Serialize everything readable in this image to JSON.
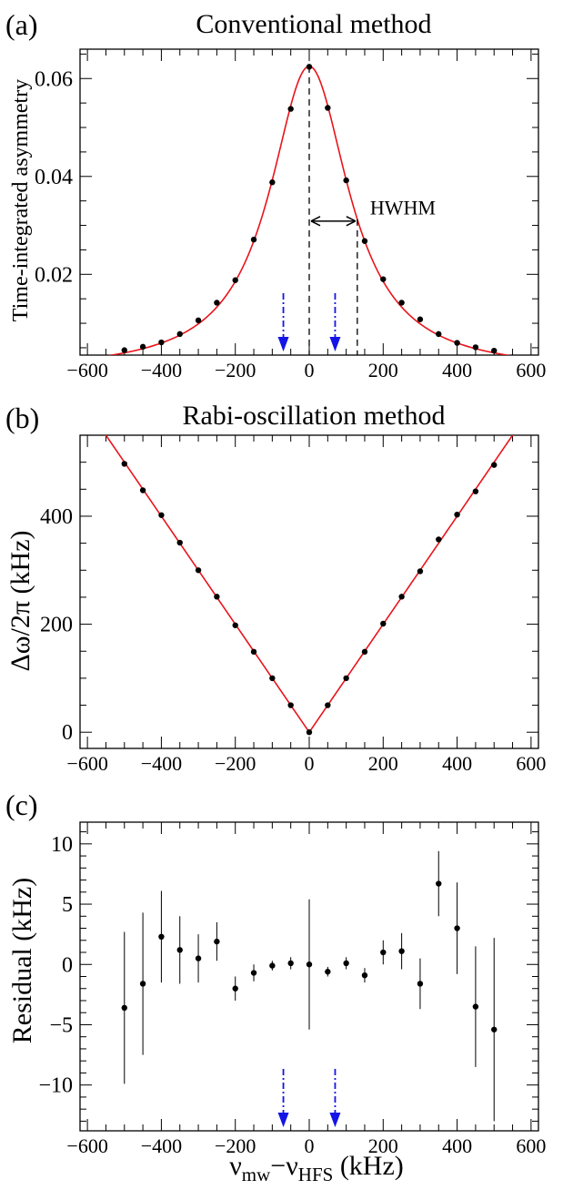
{
  "figure": {
    "panel_labels": [
      "(a)",
      "(b)",
      "(c)"
    ],
    "titles": [
      "Conventional method",
      "Rabi-oscillation method"
    ],
    "xlabel": {
      "main": "ν",
      "sub1": "mw",
      "dash": "−ν",
      "sub2": "HFS",
      "unit": " (kHz)"
    },
    "colors": {
      "fit": "#e8141b",
      "points": "#000000",
      "arrows": "#1414e6",
      "guides": "#000000"
    }
  },
  "chart_data": [
    {
      "type": "scatter",
      "panel": "(a)",
      "title": "Conventional method",
      "xlabel": "",
      "ylabel": "Time-integrated asymmetry",
      "xlim": [
        -620,
        620
      ],
      "ylim": [
        0.0035,
        0.066
      ],
      "xticks": [
        -600,
        -400,
        -200,
        0,
        200,
        400,
        600
      ],
      "yticks": [
        0.02,
        0.04,
        0.06
      ],
      "ytick_labels": [
        "0.02",
        "0.04",
        "0.06"
      ],
      "fit": {
        "type": "lorentzian",
        "amplitude": 0.0625,
        "center": 0,
        "hwhm": 130,
        "color": "#e8141b"
      },
      "series": [
        {
          "x": [
            -500,
            -450,
            -400,
            -350,
            -300,
            -250,
            -200,
            -150,
            -100,
            -50,
            0,
            50,
            100,
            150,
            200,
            250,
            300,
            350,
            400,
            450,
            500
          ],
          "y": [
            0.0045,
            0.0052,
            0.0061,
            0.0078,
            0.0106,
            0.0142,
            0.0188,
            0.0271,
            0.0388,
            0.0538,
            0.0624,
            0.054,
            0.0392,
            0.0268,
            0.019,
            0.0142,
            0.0108,
            0.0078,
            0.006,
            0.0051,
            0.0044
          ]
        }
      ],
      "annotations": [
        {
          "text": "HWHM",
          "x": 130,
          "y": 0.0315
        }
      ],
      "guide_lines": {
        "center_x": 0,
        "hwhm_x": 130
      },
      "arrows_x": [
        -70,
        70
      ]
    },
    {
      "type": "scatter",
      "panel": "(b)",
      "title": "Rabi-oscillation method",
      "xlabel": "",
      "ylabel": "Δω/2π (kHz)",
      "xlim": [
        -620,
        620
      ],
      "ylim": [
        -30,
        550
      ],
      "xticks": [
        -600,
        -400,
        -200,
        0,
        200,
        400,
        600
      ],
      "yticks": [
        0,
        200,
        400
      ],
      "fit": {
        "type": "abs_linear",
        "slope": 1.0,
        "color": "#e8141b"
      },
      "series": [
        {
          "x": [
            -500,
            -450,
            -400,
            -350,
            -300,
            -250,
            -200,
            -150,
            -100,
            -50,
            0,
            50,
            100,
            150,
            200,
            250,
            300,
            350,
            400,
            450,
            500
          ],
          "y": [
            497,
            448,
            402,
            351,
            300,
            251,
            198,
            149,
            100,
            50,
            0,
            50,
            100,
            149,
            201,
            251,
            298,
            357,
            403,
            446,
            495
          ]
        }
      ]
    },
    {
      "type": "scatter",
      "panel": "(c)",
      "title": "",
      "xlabel": "ν_mw − ν_HFS (kHz)",
      "ylabel": "Residual (kHz)",
      "xlim": [
        -620,
        620
      ],
      "ylim": [
        -13.8,
        11.8
      ],
      "xticks": [
        -600,
        -400,
        -200,
        0,
        200,
        400,
        600
      ],
      "yticks": [
        -10,
        -5,
        0,
        5,
        10
      ],
      "series": [
        {
          "x": [
            -500,
            -450,
            -400,
            -350,
            -300,
            -250,
            -200,
            -150,
            -100,
            -50,
            0,
            50,
            100,
            150,
            200,
            250,
            300,
            350,
            400,
            450,
            500
          ],
          "y": [
            -3.6,
            -1.6,
            2.3,
            1.2,
            0.5,
            1.9,
            -2.0,
            -0.7,
            -0.1,
            0.1,
            0.0,
            -0.6,
            0.1,
            -0.9,
            1.0,
            1.1,
            -1.6,
            6.7,
            3.0,
            -3.5,
            -5.4
          ],
          "err": [
            6.3,
            5.9,
            3.8,
            2.8,
            2.0,
            1.6,
            1.0,
            0.7,
            0.4,
            0.5,
            5.4,
            0.4,
            0.5,
            0.6,
            1.0,
            1.5,
            2.1,
            2.7,
            3.8,
            5.0,
            7.6
          ]
        }
      ],
      "arrows_x": [
        -70,
        70
      ]
    }
  ]
}
